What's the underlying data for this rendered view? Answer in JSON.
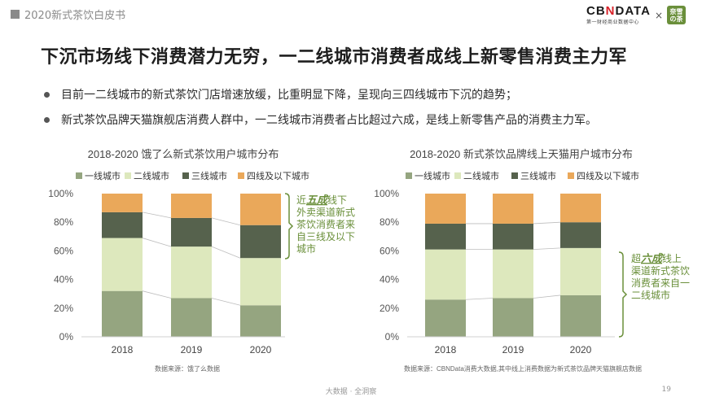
{
  "header": {
    "tag": "2020新式茶饮白皮书"
  },
  "logos": {
    "cbn_pre": "CB",
    "cbn_accent": "N",
    "cbn_post": "DATA",
    "cbn_sub": "第一财经商业数据中心",
    "times": "×",
    "partner": "奈雪の茶"
  },
  "title": "下沉市场线下消费潜力无穷，一二线城市消费者成线上新零售消费主力军",
  "bullets": [
    "目前一二线城市的新式茶饮门店增速放缓，比重明显下降，呈现向三四线城市下沉的趋势；",
    "新式茶饮品牌天猫旗舰店消费人群中，一二线城市消费者占比超过六成，是线上新零售产品的消费主力军。"
  ],
  "chart_data": [
    {
      "type": "bar",
      "stacked": true,
      "title": "2018-2020 饿了么新式茶饮用户城市分布",
      "categories": [
        "2018",
        "2019",
        "2020"
      ],
      "series": [
        {
          "name": "一线城市",
          "color": "#95a580",
          "values": [
            32,
            27,
            22
          ]
        },
        {
          "name": "二线城市",
          "color": "#dde8bd",
          "values": [
            37,
            36,
            33
          ]
        },
        {
          "name": "三线城市",
          "color": "#56624d",
          "values": [
            18,
            20,
            23
          ]
        },
        {
          "name": "四线及以下城市",
          "color": "#eaa85a",
          "values": [
            13,
            17,
            22
          ]
        }
      ],
      "ylim": [
        0,
        100
      ],
      "yticks": [
        "0%",
        "20%",
        "40%",
        "60%",
        "80%",
        "100%"
      ],
      "legend_position": "top",
      "annotation": {
        "pre": "近",
        "emph": "五成",
        "lines": [
          "线下",
          "外卖渠道新式",
          "茶饮消费者来",
          "自三线及以下",
          "城市"
        ]
      },
      "source": "数据来源：饿了么数据"
    },
    {
      "type": "bar",
      "stacked": true,
      "title": "2018-2020 新式茶饮品牌线上天猫用户城市分布",
      "categories": [
        "2018",
        "2019",
        "2020"
      ],
      "series": [
        {
          "name": "一线城市",
          "color": "#95a580",
          "values": [
            26,
            27,
            29
          ]
        },
        {
          "name": "二线城市",
          "color": "#dde8bd",
          "values": [
            35,
            34,
            33
          ]
        },
        {
          "name": "三线城市",
          "color": "#56624d",
          "values": [
            18,
            18,
            18
          ]
        },
        {
          "name": "四线及以下城市",
          "color": "#eaa85a",
          "values": [
            21,
            21,
            20
          ]
        }
      ],
      "ylim": [
        0,
        100
      ],
      "yticks": [
        "0%",
        "20%",
        "40%",
        "60%",
        "80%",
        "100%"
      ],
      "legend_position": "top",
      "annotation": {
        "pre": "超",
        "emph": "六成",
        "lines": [
          "线上",
          "渠道新式茶饮",
          "消费者来自一",
          "二线城市"
        ]
      },
      "source": "数据来源：CBNData消费大数据,其中线上消费数据为新式茶饮品牌天猫旗舰店数据"
    }
  ],
  "footer": {
    "center": "大数据 · 全洞察",
    "page": "19"
  }
}
